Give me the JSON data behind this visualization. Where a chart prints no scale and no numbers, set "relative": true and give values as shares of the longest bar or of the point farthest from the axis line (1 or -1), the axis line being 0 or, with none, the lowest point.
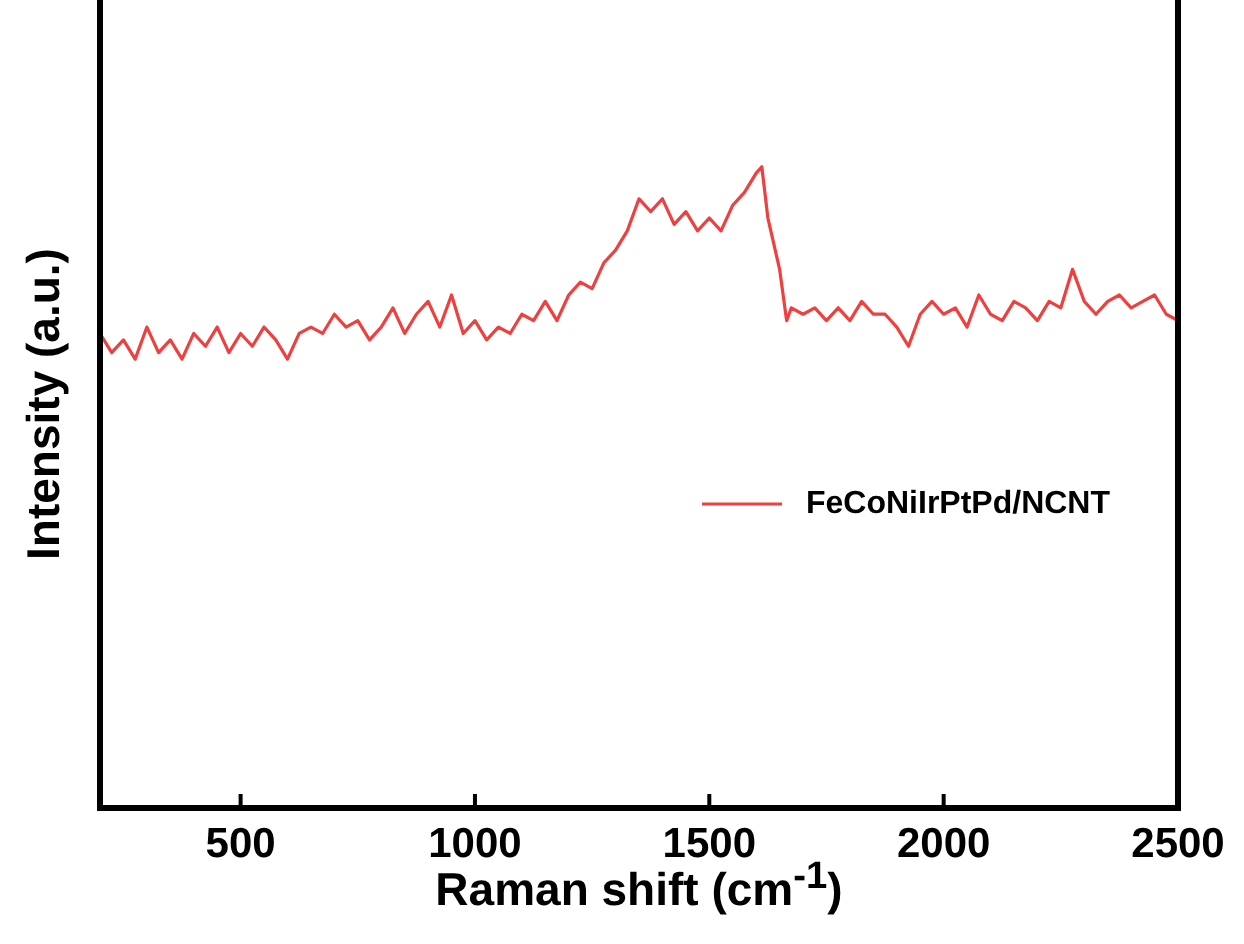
{
  "chart_data": {
    "type": "line",
    "xlabel": "Raman shift (cm$^{-1}$)",
    "ylabel": "Intensity (a.u.)",
    "relative": true,
    "legend": "right",
    "marker": "none",
    "grid": false,
    "xlim": [
      200,
      2500
    ],
    "xticks": [
      500,
      1000,
      1500,
      2000,
      2500
    ],
    "series": [
      {
        "name": "FeCoNiIrPtPd/NCNT",
        "color": "#ef3f3f",
        "x": [
          200,
          225,
          250,
          275,
          300,
          325,
          350,
          375,
          400,
          425,
          450,
          475,
          500,
          525,
          550,
          575,
          600,
          625,
          650,
          675,
          700,
          725,
          750,
          775,
          800,
          825,
          850,
          875,
          900,
          925,
          950,
          975,
          1000,
          1025,
          1050,
          1075,
          1100,
          1125,
          1150,
          1175,
          1200,
          1225,
          1250,
          1275,
          1300,
          1325,
          1350,
          1375,
          1400,
          1425,
          1450,
          1475,
          1500,
          1525,
          1550,
          1575,
          1600,
          1612,
          1625,
          1650,
          1665,
          1675,
          1700,
          1725,
          1750,
          1775,
          1800,
          1825,
          1850,
          1875,
          1900,
          1925,
          1950,
          1975,
          2000,
          2025,
          2050,
          2075,
          2100,
          2125,
          2150,
          2175,
          2200,
          2225,
          2250,
          2275,
          2300,
          2325,
          2350,
          2375,
          2400,
          2425,
          2450,
          2475,
          2500
        ],
        "values": [
          0.74,
          0.71,
          0.73,
          0.7,
          0.75,
          0.71,
          0.73,
          0.7,
          0.74,
          0.72,
          0.75,
          0.71,
          0.74,
          0.72,
          0.75,
          0.73,
          0.7,
          0.74,
          0.75,
          0.74,
          0.77,
          0.75,
          0.76,
          0.73,
          0.75,
          0.78,
          0.74,
          0.77,
          0.79,
          0.75,
          0.8,
          0.74,
          0.76,
          0.73,
          0.75,
          0.74,
          0.77,
          0.76,
          0.79,
          0.76,
          0.8,
          0.82,
          0.81,
          0.85,
          0.87,
          0.9,
          0.95,
          0.93,
          0.95,
          0.91,
          0.93,
          0.9,
          0.92,
          0.9,
          0.94,
          0.96,
          0.99,
          1.0,
          0.92,
          0.84,
          0.76,
          0.78,
          0.77,
          0.78,
          0.76,
          0.78,
          0.76,
          0.79,
          0.77,
          0.77,
          0.75,
          0.72,
          0.77,
          0.79,
          0.77,
          0.78,
          0.75,
          0.8,
          0.77,
          0.76,
          0.79,
          0.78,
          0.76,
          0.79,
          0.78,
          0.84,
          0.79,
          0.77,
          0.79,
          0.8,
          0.78,
          0.79,
          0.8,
          0.77,
          0.76
        ]
      }
    ]
  }
}
